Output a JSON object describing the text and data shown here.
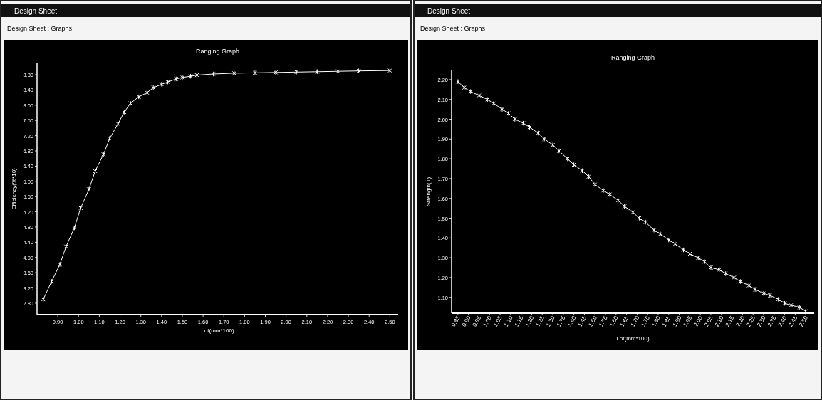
{
  "chart_data": [
    {
      "type": "line",
      "title": "Ranging Graph",
      "xlabel": "Lot(mm*100)",
      "ylabel": "Efficiency(%*10)",
      "annotations": [
        "Design Sheet",
        "Design Sheet : Graphs"
      ],
      "marker": "cross",
      "line_style": "solid",
      "xlim": [
        0.8,
        2.54
      ],
      "ylim": [
        2.5,
        9.1
      ],
      "xticks": [
        {
          "value": 0.9,
          "label": "0.90"
        },
        {
          "value": 1.0,
          "label": "1.00"
        },
        {
          "value": 1.1,
          "label": "1.10"
        },
        {
          "value": 1.2,
          "label": "1.20"
        },
        {
          "value": 1.3,
          "label": "1.30"
        },
        {
          "value": 1.4,
          "label": "1.40"
        },
        {
          "value": 1.5,
          "label": "1.50"
        },
        {
          "value": 1.6,
          "label": "1.60"
        },
        {
          "value": 1.7,
          "label": "1.70"
        },
        {
          "value": 1.8,
          "label": "1.80"
        },
        {
          "value": 1.9,
          "label": "1.90"
        },
        {
          "value": 2.0,
          "label": "2.00"
        },
        {
          "value": 2.1,
          "label": "2.10"
        },
        {
          "value": 2.2,
          "label": "2.20"
        },
        {
          "value": 2.3,
          "label": "2.30"
        },
        {
          "value": 2.4,
          "label": "2.40"
        },
        {
          "value": 2.5,
          "label": "2.50"
        }
      ],
      "yticks": [
        {
          "value": 2.8,
          "label": "2.80"
        },
        {
          "value": 3.2,
          "label": "3.20"
        },
        {
          "value": 3.6,
          "label": "3.60"
        },
        {
          "value": 4.0,
          "label": "4.00"
        },
        {
          "value": 4.4,
          "label": "4.40"
        },
        {
          "value": 4.8,
          "label": "4.80"
        },
        {
          "value": 5.2,
          "label": "5.20"
        },
        {
          "value": 5.6,
          "label": "5.60"
        },
        {
          "value": 6.0,
          "label": "6.00"
        },
        {
          "value": 6.4,
          "label": "6.40"
        },
        {
          "value": 6.8,
          "label": "6.80"
        },
        {
          "value": 7.2,
          "label": "7.20"
        },
        {
          "value": 7.6,
          "label": "7.60"
        },
        {
          "value": 8.0,
          "label": "8.00"
        },
        {
          "value": 8.4,
          "label": "8.40"
        },
        {
          "value": 8.8,
          "label": "8.80"
        }
      ],
      "series": [
        {
          "color": "#ffffff",
          "x": [
            0.83,
            0.87,
            0.91,
            0.94,
            0.98,
            1.01,
            1.05,
            1.08,
            1.12,
            1.15,
            1.19,
            1.22,
            1.25,
            1.29,
            1.33,
            1.36,
            1.4,
            1.43,
            1.47,
            1.5,
            1.54,
            1.57,
            1.65,
            1.75,
            1.85,
            1.95,
            2.05,
            2.15,
            2.25,
            2.35,
            2.5
          ],
          "values": [
            2.9,
            3.37,
            3.82,
            4.29,
            4.78,
            5.3,
            5.79,
            6.27,
            6.71,
            7.13,
            7.51,
            7.82,
            8.05,
            8.22,
            8.33,
            8.46,
            8.55,
            8.61,
            8.69,
            8.73,
            8.76,
            8.79,
            8.82,
            8.84,
            8.85,
            8.86,
            8.87,
            8.88,
            8.89,
            8.9,
            8.91
          ]
        }
      ]
    },
    {
      "type": "line",
      "title": "Ranging Graph",
      "xlabel": "Lot(mm*100)",
      "ylabel": "Strength(T)",
      "annotations": [
        "Design Sheet",
        "Design Sheet : Graphs"
      ],
      "marker": "cross",
      "line_style": "solid",
      "xlim": [
        0.82,
        2.54
      ],
      "ylim": [
        1.02,
        2.25
      ],
      "xticks": [
        {
          "value": 0.85,
          "label": "0.85"
        },
        {
          "value": 0.9,
          "label": "0.90"
        },
        {
          "value": 0.95,
          "label": "0.95"
        },
        {
          "value": 1.0,
          "label": "1.00"
        },
        {
          "value": 1.05,
          "label": "1.05"
        },
        {
          "value": 1.1,
          "label": "1.10"
        },
        {
          "value": 1.15,
          "label": "1.15"
        },
        {
          "value": 1.2,
          "label": "1.20"
        },
        {
          "value": 1.25,
          "label": "1.25"
        },
        {
          "value": 1.3,
          "label": "1.30"
        },
        {
          "value": 1.35,
          "label": "1.35"
        },
        {
          "value": 1.4,
          "label": "1.40"
        },
        {
          "value": 1.45,
          "label": "1.45"
        },
        {
          "value": 1.5,
          "label": "1.50"
        },
        {
          "value": 1.55,
          "label": "1.55"
        },
        {
          "value": 1.6,
          "label": "1.60"
        },
        {
          "value": 1.65,
          "label": "1.65"
        },
        {
          "value": 1.7,
          "label": "1.70"
        },
        {
          "value": 1.75,
          "label": "1.75"
        },
        {
          "value": 1.8,
          "label": "1.80"
        },
        {
          "value": 1.85,
          "label": "1.85"
        },
        {
          "value": 1.9,
          "label": "1.90"
        },
        {
          "value": 1.95,
          "label": "1.95"
        },
        {
          "value": 2.0,
          "label": "2.00"
        },
        {
          "value": 2.05,
          "label": "2.05"
        },
        {
          "value": 2.1,
          "label": "2.10"
        },
        {
          "value": 2.15,
          "label": "2.15"
        },
        {
          "value": 2.2,
          "label": "2.20"
        },
        {
          "value": 2.25,
          "label": "2.25"
        },
        {
          "value": 2.3,
          "label": "2.30"
        },
        {
          "value": 2.35,
          "label": "2.35"
        },
        {
          "value": 2.4,
          "label": "2.40"
        },
        {
          "value": 2.45,
          "label": "2.45"
        },
        {
          "value": 2.5,
          "label": "2.50"
        }
      ],
      "yticks": [
        {
          "value": 1.1,
          "label": "1.10"
        },
        {
          "value": 1.2,
          "label": "1.20"
        },
        {
          "value": 1.3,
          "label": "1.30"
        },
        {
          "value": 1.4,
          "label": "1.40"
        },
        {
          "value": 1.5,
          "label": "1.50"
        },
        {
          "value": 1.6,
          "label": "1.60"
        },
        {
          "value": 1.7,
          "label": "1.70"
        },
        {
          "value": 1.8,
          "label": "1.80"
        },
        {
          "value": 1.9,
          "label": "1.90"
        },
        {
          "value": 2.0,
          "label": "2.00"
        },
        {
          "value": 2.1,
          "label": "2.10"
        },
        {
          "value": 2.2,
          "label": "2.20"
        }
      ],
      "series": [
        {
          "color": "#ffffff",
          "x": [
            0.85,
            0.88,
            0.91,
            0.95,
            0.99,
            1.02,
            1.06,
            1.09,
            1.12,
            1.16,
            1.19,
            1.23,
            1.26,
            1.3,
            1.33,
            1.37,
            1.4,
            1.44,
            1.47,
            1.5,
            1.54,
            1.57,
            1.61,
            1.64,
            1.68,
            1.71,
            1.74,
            1.78,
            1.81,
            1.85,
            1.88,
            1.92,
            1.95,
            1.99,
            2.02,
            2.05,
            2.09,
            2.12,
            2.16,
            2.19,
            2.23,
            2.26,
            2.3,
            2.33,
            2.37,
            2.4,
            2.43,
            2.47,
            2.5
          ],
          "values": [
            2.19,
            2.16,
            2.14,
            2.12,
            2.1,
            2.08,
            2.05,
            2.03,
            2.0,
            1.98,
            1.96,
            1.93,
            1.9,
            1.87,
            1.84,
            1.8,
            1.77,
            1.74,
            1.71,
            1.67,
            1.64,
            1.62,
            1.59,
            1.56,
            1.53,
            1.5,
            1.48,
            1.44,
            1.42,
            1.39,
            1.37,
            1.34,
            1.32,
            1.3,
            1.28,
            1.25,
            1.24,
            1.22,
            1.2,
            1.18,
            1.16,
            1.14,
            1.12,
            1.11,
            1.09,
            1.07,
            1.06,
            1.05,
            1.03
          ]
        }
      ]
    }
  ]
}
